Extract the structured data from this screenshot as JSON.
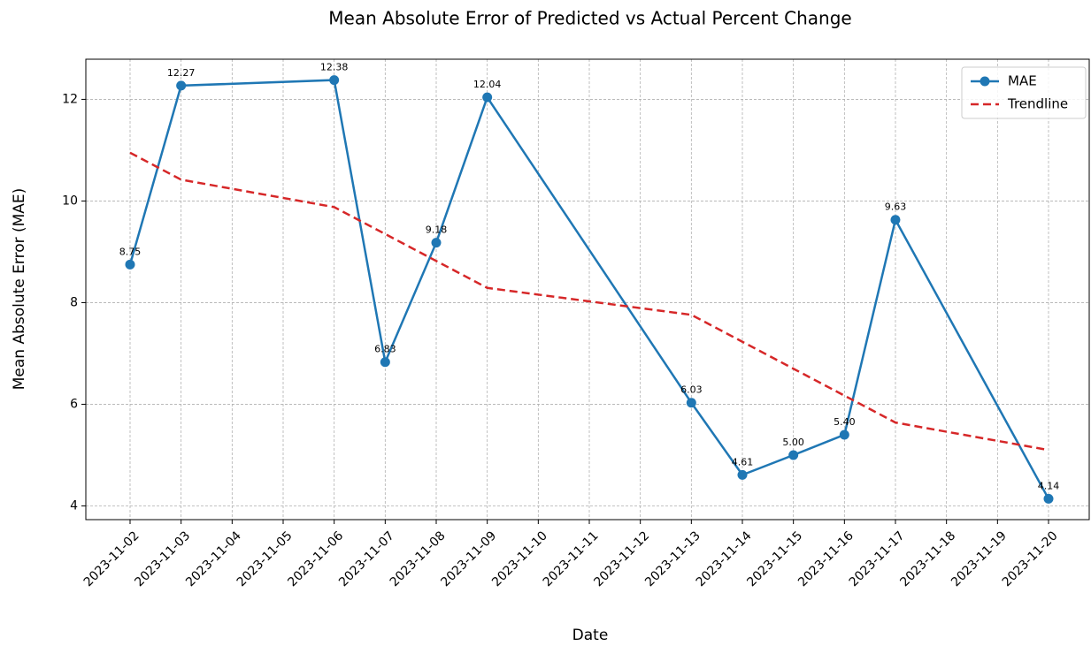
{
  "chart_data": {
    "type": "line",
    "title": "Mean Absolute Error of Predicted vs Actual Percent Change",
    "xlabel": "Date",
    "ylabel": "Mean Absolute Error (MAE)",
    "xticks": [
      "2023-11-02",
      "2023-11-03",
      "2023-11-04",
      "2023-11-05",
      "2023-11-06",
      "2023-11-07",
      "2023-11-08",
      "2023-11-09",
      "2023-11-10",
      "2023-11-11",
      "2023-11-12",
      "2023-11-13",
      "2023-11-14",
      "2023-11-15",
      "2023-11-16",
      "2023-11-17",
      "2023-11-18",
      "2023-11-19",
      "2023-11-20"
    ],
    "ylim": [
      3.73,
      12.79
    ],
    "yticks": [
      4,
      6,
      8,
      10,
      12
    ],
    "grid": true,
    "legend": "upper right",
    "series": [
      {
        "name": "MAE",
        "color": "#1f77b4",
        "style": "solid",
        "markers": true,
        "x": [
          "2023-11-02",
          "2023-11-03",
          "2023-11-06",
          "2023-11-07",
          "2023-11-08",
          "2023-11-09",
          "2023-11-13",
          "2023-11-14",
          "2023-11-15",
          "2023-11-16",
          "2023-11-17",
          "2023-11-20"
        ],
        "values": [
          8.75,
          12.27,
          12.38,
          6.83,
          9.18,
          12.04,
          6.03,
          4.61,
          5.0,
          5.4,
          9.63,
          4.14
        ],
        "value_labels": [
          "8.75",
          "12.27",
          "12.38",
          "6.83",
          "9.18",
          "12.04",
          "6.03",
          "4.61",
          "5.00",
          "5.40",
          "9.63",
          "4.14"
        ]
      },
      {
        "name": "Trendline",
        "color": "#d62728",
        "style": "dashed",
        "markers": false,
        "x": [
          "2023-11-02",
          "2023-11-03",
          "2023-11-06",
          "2023-11-07",
          "2023-11-08",
          "2023-11-09",
          "2023-11-13",
          "2023-11-14",
          "2023-11-15",
          "2023-11-16",
          "2023-11-17",
          "2023-11-20"
        ],
        "values": [
          10.95,
          10.42,
          9.88,
          9.35,
          8.82,
          8.29,
          7.76,
          7.23,
          6.7,
          6.17,
          5.64,
          5.1
        ]
      }
    ]
  }
}
